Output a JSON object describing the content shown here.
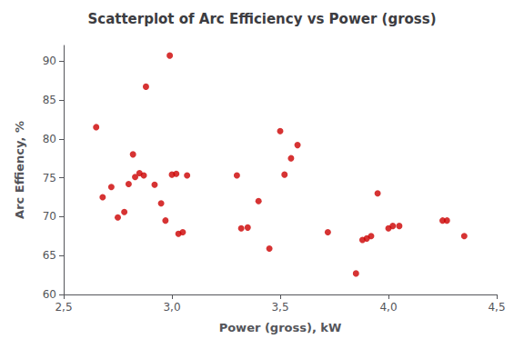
{
  "chart_data": {
    "type": "scatter",
    "title": "Scatterplot of Arc Efficiency vs Power (gross)",
    "xlabel": "Power (gross), kW",
    "ylabel": "Arc Effiency, %",
    "x": [
      2.65,
      2.68,
      2.72,
      2.75,
      2.78,
      2.8,
      2.82,
      2.83,
      2.85,
      2.87,
      2.88,
      2.92,
      2.95,
      2.97,
      2.99,
      3.0,
      3.02,
      3.03,
      3.05,
      3.07,
      3.3,
      3.32,
      3.35,
      3.4,
      3.45,
      3.5,
      3.52,
      3.55,
      3.58,
      3.72,
      3.85,
      3.88,
      3.9,
      3.92,
      3.95,
      4.0,
      4.02,
      4.05,
      4.25,
      4.27,
      4.35
    ],
    "values": [
      81.5,
      72.5,
      73.8,
      69.9,
      70.6,
      74.2,
      78.0,
      75.1,
      75.6,
      75.3,
      86.7,
      74.1,
      71.7,
      69.5,
      90.7,
      75.4,
      75.5,
      67.8,
      68.0,
      75.3,
      75.3,
      68.5,
      68.6,
      72.0,
      65.9,
      81.0,
      75.4,
      77.5,
      79.2,
      68.0,
      62.7,
      67.0,
      67.2,
      67.5,
      73.0,
      68.5,
      68.8,
      68.8,
      69.5,
      69.5,
      67.5
    ],
    "color": "#cc0000",
    "xlim": [
      2.5,
      4.5
    ],
    "ylim": [
      60,
      92
    ],
    "xticks": [
      {
        "value": 2.5,
        "label": "2,5"
      },
      {
        "value": 3.0,
        "label": "3,0"
      },
      {
        "value": 3.5,
        "label": "3,5"
      },
      {
        "value": 4.0,
        "label": "4,0"
      },
      {
        "value": 4.5,
        "label": "4,5"
      }
    ],
    "yticks": [
      60,
      65,
      70,
      75,
      80,
      85,
      90
    ],
    "grid": false
  }
}
